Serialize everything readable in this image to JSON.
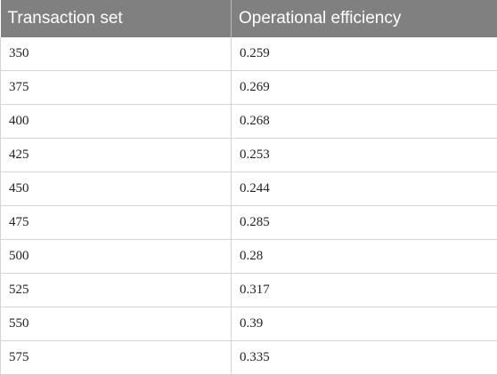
{
  "table": {
    "headers": [
      "Transaction set",
      "Operational efficiency"
    ],
    "rows": [
      [
        "350",
        "0.259"
      ],
      [
        "375",
        "0.269"
      ],
      [
        "400",
        "0.268"
      ],
      [
        "425",
        "0.253"
      ],
      [
        "450",
        "0.244"
      ],
      [
        "475",
        "0.285"
      ],
      [
        "500",
        "0.28"
      ],
      [
        "525",
        "0.317"
      ],
      [
        "550",
        "0.39"
      ],
      [
        "575",
        "0.335"
      ]
    ]
  }
}
